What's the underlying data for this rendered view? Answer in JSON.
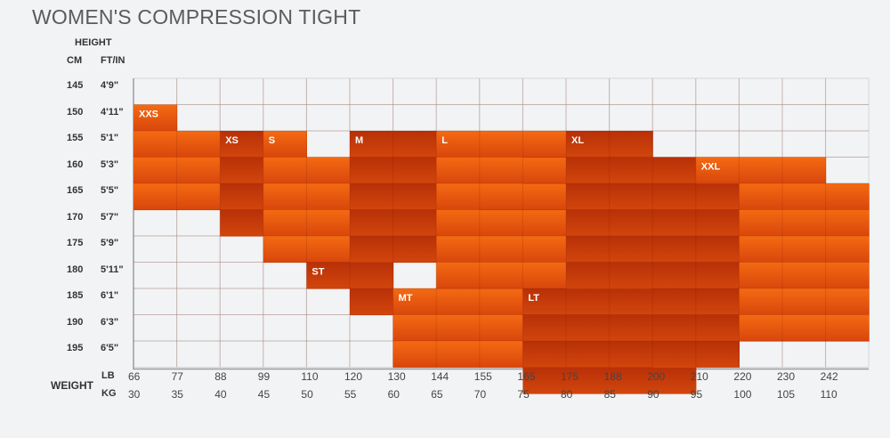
{
  "title": "WOMEN'S COMPRESSION TIGHT",
  "axis": {
    "height_label": "HEIGHT",
    "cm_label": "CM",
    "ftin_label": "FT/IN",
    "weight_label": "WEIGHT",
    "lb_label": "LB",
    "kg_label": "KG"
  },
  "colors": {
    "background": "#f2f3f4",
    "grid": "#d5d7da",
    "orange_light": "#f05a10",
    "orange_dark": "#a82808"
  },
  "chart_data": {
    "type": "heatmap",
    "title": "WOMEN'S COMPRESSION TIGHT",
    "ylabel": "HEIGHT",
    "xlabel": "WEIGHT",
    "height_cm": [
      "145",
      "150",
      "155",
      "160",
      "165",
      "170",
      "175",
      "180",
      "185",
      "190",
      "195"
    ],
    "height_ftin": [
      "4'9\"",
      "4'11\"",
      "5'1\"",
      "5'3\"",
      "5'5\"",
      "5'7\"",
      "5'9\"",
      "5'11\"",
      "6'1\"",
      "6'3\"",
      "6'5\""
    ],
    "weight_lb": [
      "66",
      "77",
      "88",
      "99",
      "110",
      "120",
      "130",
      "144",
      "155",
      "165",
      "175",
      "188",
      "200",
      "210",
      "220",
      "230",
      "242"
    ],
    "weight_kg": [
      "30",
      "35",
      "40",
      "45",
      "50",
      "55",
      "60",
      "65",
      "70",
      "75",
      "80",
      "85",
      "90",
      "95",
      "100",
      "105",
      "110"
    ],
    "sizes": [
      {
        "label": "XXS",
        "shade": "light",
        "cells": [
          [
            0,
            1
          ],
          [
            0,
            2
          ],
          [
            1,
            2
          ],
          [
            0,
            3
          ],
          [
            1,
            3
          ],
          [
            0,
            4
          ],
          [
            1,
            4
          ]
        ]
      },
      {
        "label": "XS",
        "shade": "dark",
        "cells": [
          [
            2,
            2
          ],
          [
            2,
            3
          ],
          [
            2,
            4
          ],
          [
            2,
            5
          ]
        ]
      },
      {
        "label": "S",
        "shade": "light",
        "cells": [
          [
            3,
            2
          ],
          [
            3,
            3
          ],
          [
            3,
            4
          ],
          [
            3,
            5
          ],
          [
            3,
            6
          ],
          [
            4,
            3
          ],
          [
            4,
            4
          ],
          [
            4,
            5
          ],
          [
            4,
            6
          ]
        ]
      },
      {
        "label": "ST",
        "shade": "dark",
        "cells": [
          [
            4,
            7
          ],
          [
            5,
            7
          ],
          [
            5,
            8
          ]
        ]
      },
      {
        "label": "M",
        "shade": "dark",
        "cells": [
          [
            5,
            2
          ],
          [
            6,
            2
          ],
          [
            5,
            3
          ],
          [
            6,
            3
          ],
          [
            5,
            4
          ],
          [
            6,
            4
          ],
          [
            5,
            5
          ],
          [
            6,
            5
          ],
          [
            5,
            6
          ],
          [
            6,
            6
          ]
        ]
      },
      {
        "label": "MT",
        "shade": "light",
        "cells": [
          [
            6,
            8
          ],
          [
            7,
            8
          ],
          [
            8,
            8
          ],
          [
            6,
            9
          ],
          [
            7,
            9
          ],
          [
            8,
            9
          ],
          [
            6,
            10
          ],
          [
            7,
            10
          ],
          [
            8,
            10
          ]
        ]
      },
      {
        "label": "L",
        "shade": "light",
        "cells": [
          [
            7,
            2
          ],
          [
            8,
            2
          ],
          [
            7,
            3
          ],
          [
            8,
            3
          ],
          [
            7,
            4
          ],
          [
            7,
            5
          ],
          [
            8,
            5
          ],
          [
            9,
            5
          ],
          [
            7,
            6
          ],
          [
            8,
            6
          ],
          [
            9,
            6
          ],
          [
            7,
            7
          ],
          [
            8,
            7
          ],
          [
            9,
            7
          ],
          [
            9,
            4
          ],
          [
            9,
            3
          ],
          [
            9,
            2
          ],
          [
            8,
            4
          ]
        ]
      },
      {
        "label": "LT",
        "shade": "dark",
        "cells": [
          [
            9,
            8
          ],
          [
            10,
            8
          ],
          [
            11,
            8
          ],
          [
            9,
            9
          ],
          [
            10,
            9
          ],
          [
            11,
            9
          ],
          [
            9,
            10
          ],
          [
            10,
            10
          ],
          [
            11,
            10
          ],
          [
            9,
            11
          ],
          [
            10,
            11
          ],
          [
            11,
            11
          ],
          [
            12,
            11
          ]
        ]
      },
      {
        "label": "XL",
        "shade": "dark",
        "cells": [
          [
            10,
            2
          ],
          [
            11,
            2
          ],
          [
            11,
            3
          ],
          [
            12,
            3
          ],
          [
            11,
            4
          ],
          [
            12,
            4
          ],
          [
            13,
            4
          ],
          [
            10,
            3
          ],
          [
            10,
            4
          ],
          [
            10,
            5
          ],
          [
            11,
            5
          ],
          [
            12,
            5
          ],
          [
            13,
            5
          ],
          [
            10,
            6
          ],
          [
            11,
            6
          ],
          [
            12,
            6
          ],
          [
            13,
            6
          ],
          [
            10,
            7
          ],
          [
            11,
            7
          ],
          [
            12,
            7
          ],
          [
            13,
            7
          ],
          [
            12,
            8
          ],
          [
            13,
            8
          ],
          [
            12,
            9
          ],
          [
            13,
            9
          ],
          [
            12,
            10
          ],
          [
            13,
            10
          ]
        ]
      },
      {
        "label": "XXL",
        "shade": "light",
        "cells": [
          [
            13,
            3
          ],
          [
            14,
            3
          ],
          [
            15,
            3
          ],
          [
            14,
            4
          ],
          [
            15,
            4
          ],
          [
            16,
            4
          ],
          [
            14,
            5
          ],
          [
            15,
            5
          ],
          [
            16,
            5
          ],
          [
            14,
            6
          ],
          [
            15,
            6
          ],
          [
            16,
            6
          ],
          [
            14,
            7
          ],
          [
            15,
            7
          ],
          [
            16,
            7
          ],
          [
            14,
            8
          ],
          [
            15,
            8
          ],
          [
            16,
            8
          ],
          [
            14,
            9
          ],
          [
            15,
            9
          ],
          [
            16,
            9
          ]
        ]
      }
    ]
  }
}
